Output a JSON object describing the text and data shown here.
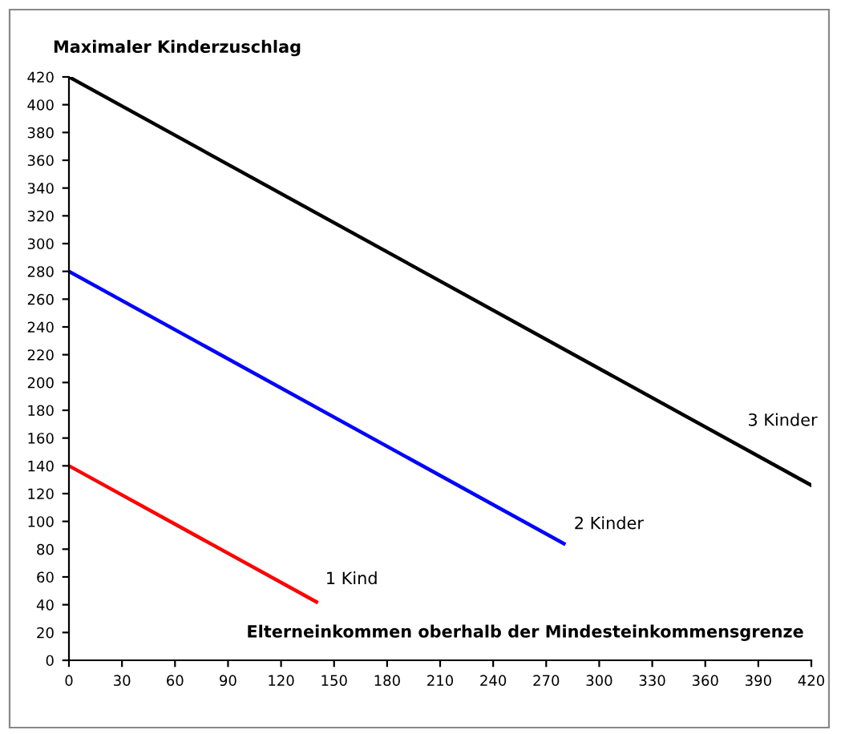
{
  "chart_data": {
    "type": "line",
    "ylabel": "Maximaler Kinderzuschlag",
    "xlabel": "Elterneinkommen oberhalb der Mindesteinkommensgrenze",
    "series": [
      {
        "name": "1 Kind",
        "color": "#ff0000",
        "x": [
          0,
          140
        ],
        "values": [
          140,
          42
        ]
      },
      {
        "name": "2 Kinder",
        "color": "#0000ff",
        "x": [
          0,
          280
        ],
        "values": [
          280,
          84
        ]
      },
      {
        "name": "3 Kinder",
        "color": "#000000",
        "x": [
          0,
          420
        ],
        "values": [
          420,
          126
        ]
      }
    ],
    "xlim": [
      0,
      420
    ],
    "ylim": [
      0,
      420
    ],
    "xticks": [
      0,
      30,
      60,
      90,
      120,
      150,
      180,
      210,
      240,
      270,
      300,
      330,
      360,
      390,
      420
    ],
    "yticks": [
      0,
      20,
      40,
      60,
      80,
      100,
      120,
      140,
      160,
      180,
      200,
      220,
      240,
      260,
      280,
      300,
      320,
      340,
      360,
      380,
      400,
      420
    ],
    "grid": false,
    "legend": false,
    "marker": "none",
    "line_style": "solid"
  }
}
